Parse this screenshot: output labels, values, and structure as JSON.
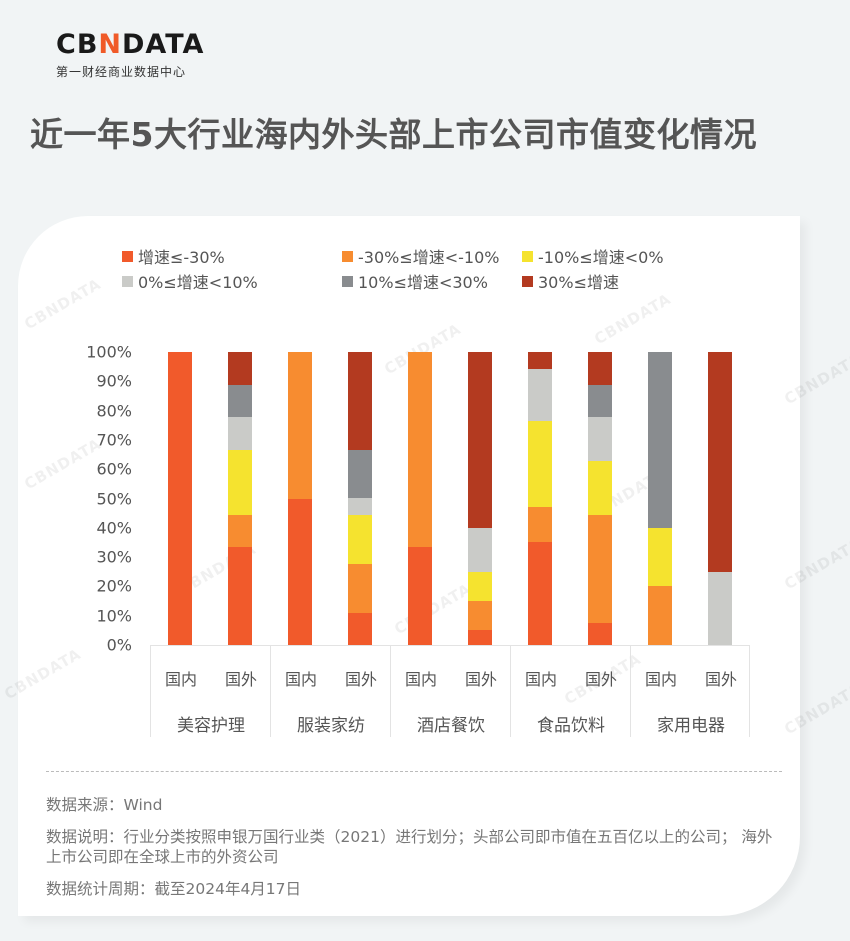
{
  "logo": {
    "main_pre": "CB",
    "main_x": "N",
    "main_post": "DATA",
    "subtitle": "第一财经商业数据中心"
  },
  "title": "近一年5大行业海内外头部上市公司市值变化情况",
  "colors": {
    "c1": "#f15a2b",
    "c2": "#f78c30",
    "c3": "#f5e32f",
    "c4": "#cacbc8",
    "c5": "#898c8f",
    "c6": "#b33a20"
  },
  "legend": [
    {
      "label": "增速≤-30%",
      "color": "#f15a2b"
    },
    {
      "label": "-30%≤增速<-10%",
      "color": "#f78c30"
    },
    {
      "label": "-10%≤增速<0%",
      "color": "#f5e32f"
    },
    {
      "label": "0%≤增速<10%",
      "color": "#cacbc8"
    },
    {
      "label": "10%≤增速<30%",
      "color": "#898c8f"
    },
    {
      "label": "30%≤增速",
      "color": "#b33a20"
    }
  ],
  "chart_data": {
    "type": "bar",
    "stacked": true,
    "normalized": true,
    "title": "近一年5大行业海内外头部上市公司市值变化情况",
    "xlabel": "",
    "ylabel": "",
    "ylim": [
      0,
      100
    ],
    "yticks": [
      "0%",
      "10%",
      "20%",
      "30%",
      "40%",
      "50%",
      "60%",
      "70%",
      "80%",
      "90%",
      "100%"
    ],
    "grid": false,
    "legend_position": "top",
    "groups": [
      "美容护理",
      "服装家纺",
      "酒店餐饮",
      "食品饮料",
      "家用电器"
    ],
    "subcategories": [
      "国内",
      "国外"
    ],
    "categories": [
      "美容护理-国内",
      "美容护理-国外",
      "服装家纺-国内",
      "服装家纺-国外",
      "酒店餐饮-国内",
      "酒店餐饮-国外",
      "食品饮料-国内",
      "食品饮料-国外",
      "家用电器-国内",
      "家用电器-国外"
    ],
    "series": [
      {
        "name": "增速≤-30%",
        "values": [
          100,
          33.3,
          50,
          11.1,
          33.3,
          5,
          35.3,
          7.4,
          0,
          0
        ]
      },
      {
        "name": "-30%≤增速<-10%",
        "values": [
          0,
          11.1,
          50,
          16.7,
          66.7,
          10,
          11.8,
          37.0,
          20,
          0
        ]
      },
      {
        "name": "-10%≤增速<0%",
        "values": [
          0,
          22.2,
          0,
          16.7,
          0,
          10,
          29.4,
          18.5,
          20,
          0
        ]
      },
      {
        "name": "0%≤增速<10%",
        "values": [
          0,
          11.1,
          0,
          5.6,
          0,
          15,
          17.6,
          14.8,
          0,
          25
        ]
      },
      {
        "name": "10%≤增速<30%",
        "values": [
          0,
          11.1,
          0,
          16.7,
          0,
          0,
          0,
          11.1,
          60,
          0
        ]
      },
      {
        "name": "30%≤增速",
        "values": [
          0,
          11.1,
          0,
          33.3,
          0,
          60,
          5.9,
          11.1,
          0,
          75
        ]
      }
    ]
  },
  "notes": {
    "source": "数据来源：Wind",
    "description": "数据说明：行业分类按照申银万国行业类（2021）进行划分；头部公司即市值在五百亿以上的公司； 海外上市公司即在全球上市的外资公司",
    "period": "数据统计周期：截至2024年4月17日"
  },
  "watermark": "CBNDATA"
}
